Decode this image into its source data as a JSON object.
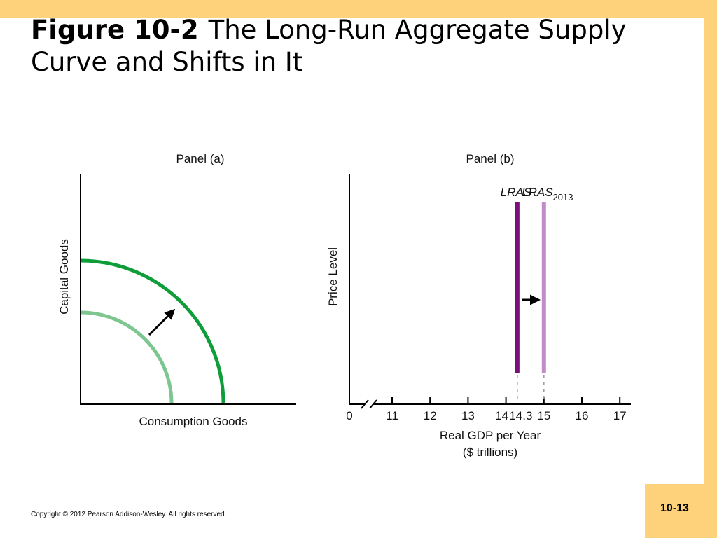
{
  "title": {
    "figure_label": "Figure 10-2",
    "text": "The Long-Run Aggregate Supply Curve and Shifts in It"
  },
  "footer": {
    "copyright": "Copyright © 2012 Pearson Addison-Wesley. All rights reserved.",
    "page_number": "10-13"
  },
  "colors": {
    "ppf_inner": "#7dc68f",
    "ppf_outer": "#0f9d3a",
    "lras_initial": "#7b0f7b",
    "lras_2013": "#c58ac9",
    "accent_bar": "#fdd27a"
  },
  "chart_data": [
    {
      "type": "line",
      "title": "Panel (a)",
      "xlabel": "Consumption Goods",
      "ylabel": "Capital Goods",
      "series": [
        {
          "name": "",
          "shape": "production possibilities curve",
          "position": "inner"
        },
        {
          "name": "",
          "shape": "production possibilities curve",
          "position": "outer"
        }
      ],
      "annotations": [
        "arrow pointing outward from inner curve toward outer curve"
      ],
      "grid": false
    },
    {
      "type": "line",
      "title": "Panel (b)",
      "xlabel": "Real GDP per Year",
      "xlabel_unit": "($ trillions)",
      "ylabel": "Price Level",
      "x_ticks": [
        "0",
        "11",
        "12",
        "13",
        "14",
        "14.3",
        "15",
        "16",
        "17"
      ],
      "x_break": true,
      "xlim": [
        10.3,
        17.3
      ],
      "series": [
        {
          "name": "LRAS",
          "subscript": "",
          "x": 14.3
        },
        {
          "name": "LRAS",
          "subscript": "2013",
          "x": 15
        }
      ],
      "annotations": [
        "arrow pointing right from LRAS to LRAS2013"
      ],
      "grid": false
    }
  ]
}
